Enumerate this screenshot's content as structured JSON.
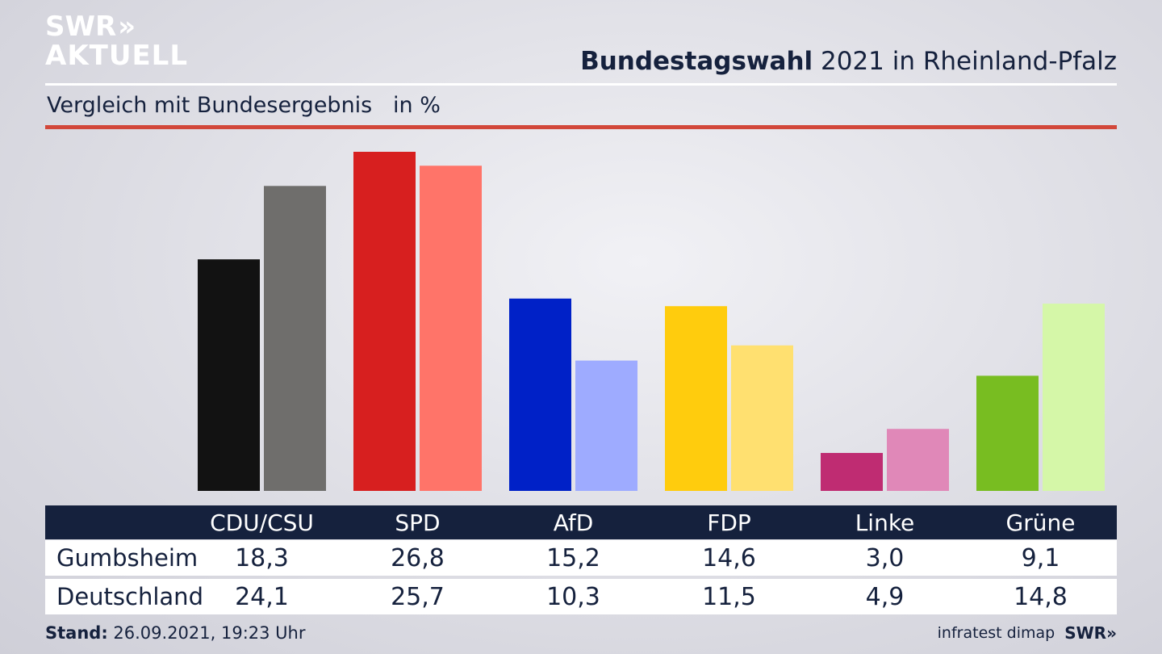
{
  "logo": {
    "line1": "SWR",
    "chevrons": "»",
    "line2": "AKTUELL"
  },
  "header": {
    "title_bold": "Bundestagswahl",
    "title_rest": " 2021 in Rheinland-Pfalz",
    "subtitle": "Vergleich mit Bundesergebnis   in %"
  },
  "table": {
    "row_labels": [
      "Gumbsheim",
      "Deutschland"
    ]
  },
  "footer": {
    "stand_label": "Stand:",
    "stand_value": " 26.09.2021, 19:23 Uhr",
    "source": "infratest dimap",
    "brand": "SWR»"
  },
  "chart_data": {
    "type": "bar",
    "categories": [
      "CDU/CSU",
      "SPD",
      "AfD",
      "FDP",
      "Linke",
      "Grüne"
    ],
    "series": [
      {
        "name": "Gumbsheim",
        "values": [
          18.3,
          26.8,
          15.2,
          14.6,
          3.0,
          9.1
        ],
        "labels": [
          "18,3",
          "26,8",
          "15,2",
          "14,6",
          "3,0",
          "9,1"
        ],
        "colors": [
          "#121212",
          "#d71f1f",
          "#0021c7",
          "#ffcc0d",
          "#bf2c72",
          "#78bd21"
        ]
      },
      {
        "name": "Deutschland",
        "values": [
          24.1,
          25.7,
          10.3,
          11.5,
          4.9,
          14.8
        ],
        "labels": [
          "24,1",
          "25,7",
          "10,3",
          "11,5",
          "4,9",
          "14,8"
        ],
        "colors": [
          "#6f6e6c",
          "#ff7469",
          "#9eabff",
          "#ffe070",
          "#e088b8",
          "#d5f7a8"
        ]
      }
    ],
    "ylim": [
      0,
      26.8
    ],
    "grid": false,
    "legend": "table-below"
  }
}
